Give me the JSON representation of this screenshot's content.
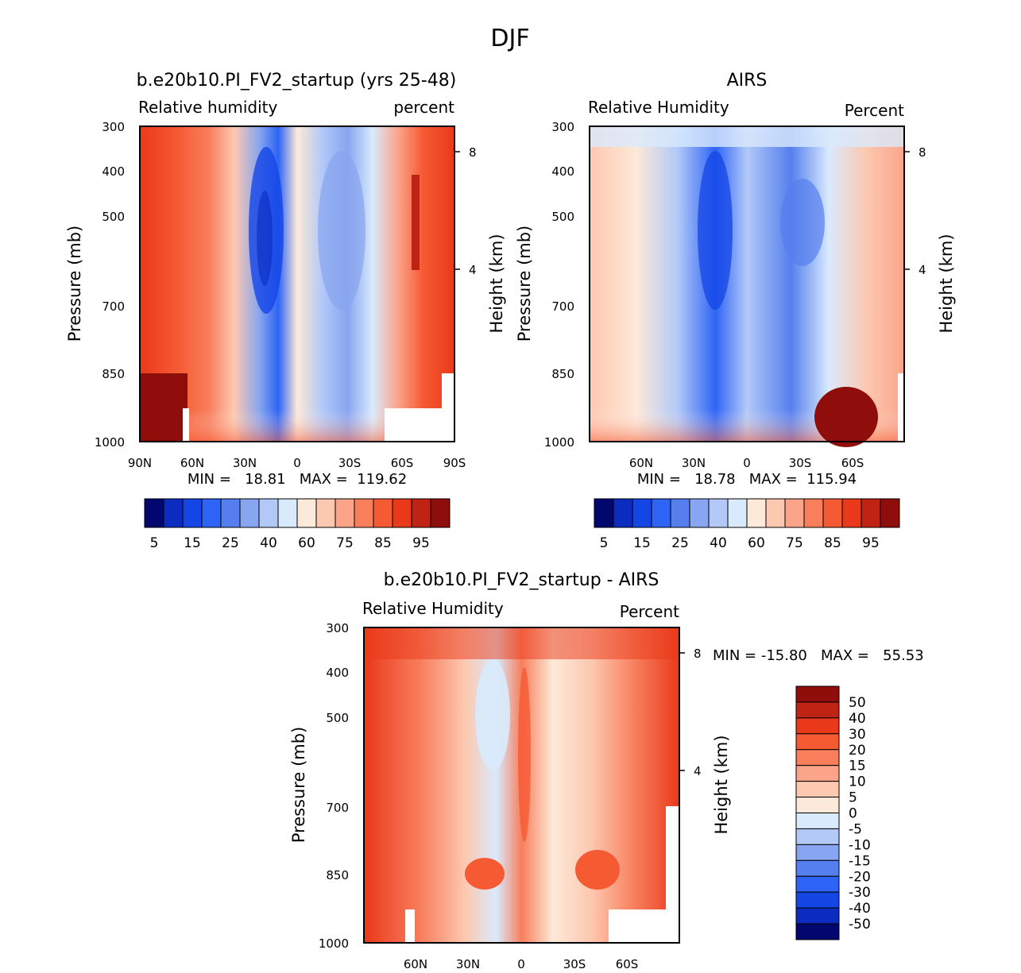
{
  "figure_title": "DJF",
  "chart_data": [
    {
      "type": "heatmap",
      "panel": "model",
      "title": "b.e20b10.PI_FV2_startup (yrs 25-48)",
      "left_label": "Relative humidity",
      "right_label": "percent",
      "ylabel": "Pressure (mb)",
      "ylabel_right": "Height (km)",
      "x_ticks": [
        "90N",
        "60N",
        "30N",
        "0",
        "30S",
        "60S",
        "90S"
      ],
      "y_ticks": [
        "300",
        "400",
        "500",
        "700",
        "850",
        "1000"
      ],
      "height_ticks": [
        "8",
        "4"
      ],
      "stats": "MIN =   18.81   MAX =  119.62",
      "colorbar_labels": [
        "5",
        "15",
        "25",
        "40",
        "60",
        "75",
        "85",
        "95"
      ],
      "colorbar_colors": [
        "#02066f",
        "#0c2bbf",
        "#1446e6",
        "#2e64f5",
        "#557fee",
        "#87a5f0",
        "#b2c9f8",
        "#d9eafc",
        "#fde9d9",
        "#fdc8b0",
        "#fba48a",
        "#f87e5c",
        "#f55a33",
        "#e9391a",
        "#bf2313",
        "#8f0d0b"
      ],
      "zonal_profile_rh_percent": [
        92,
        78,
        70,
        62,
        40,
        30,
        45,
        55,
        42,
        60,
        75,
        88,
        93
      ]
    },
    {
      "type": "heatmap",
      "panel": "obs",
      "title": "AIRS",
      "left_label": "Relative Humidity",
      "right_label": "Percent",
      "ylabel": "Pressure (mb)",
      "ylabel_right": "Height (km)",
      "x_ticks": [
        "60N",
        "30N",
        "0",
        "30S",
        "60S"
      ],
      "y_ticks": [
        "300",
        "400",
        "500",
        "700",
        "850",
        "1000"
      ],
      "height_ticks": [
        "8",
        "4"
      ],
      "stats": "MIN =   18.78   MAX =  115.94",
      "colorbar_labels": [
        "5",
        "15",
        "25",
        "40",
        "60",
        "75",
        "85",
        "95"
      ],
      "colorbar_colors": [
        "#02066f",
        "#0c2bbf",
        "#1446e6",
        "#2e64f5",
        "#557fee",
        "#87a5f0",
        "#b2c9f8",
        "#d9eafc",
        "#fde9d9",
        "#fdc8b0",
        "#fba48a",
        "#f87e5c",
        "#f55a33",
        "#e9391a",
        "#bf2313",
        "#8f0d0b"
      ]
    },
    {
      "type": "heatmap",
      "panel": "difference",
      "title": "b.e20b10.PI_FV2_startup - AIRS",
      "left_label": "Relative Humidity",
      "right_label": "Percent",
      "ylabel": "Pressure (mb)",
      "ylabel_right": "Height (km)",
      "x_ticks": [
        "60N",
        "30N",
        "0",
        "30S",
        "60S"
      ],
      "y_ticks": [
        "300",
        "400",
        "500",
        "700",
        "850",
        "1000"
      ],
      "height_ticks": [
        "8",
        "4"
      ],
      "stats": "MIN = -15.80   MAX =   55.53",
      "colorbar_labels": [
        "50",
        "40",
        "30",
        "20",
        "15",
        "10",
        "5",
        "0",
        "-5",
        "-10",
        "-15",
        "-20",
        "-30",
        "-40",
        "-50"
      ],
      "colorbar_colors": [
        "#8f0d0b",
        "#bf2313",
        "#e9391a",
        "#f55a33",
        "#f87e5c",
        "#fba48a",
        "#fdc8b0",
        "#fde9d9",
        "#d9eafc",
        "#b2c9f8",
        "#87a5f0",
        "#557fee",
        "#2e64f5",
        "#1446e6",
        "#0c2bbf",
        "#02066f"
      ]
    }
  ]
}
